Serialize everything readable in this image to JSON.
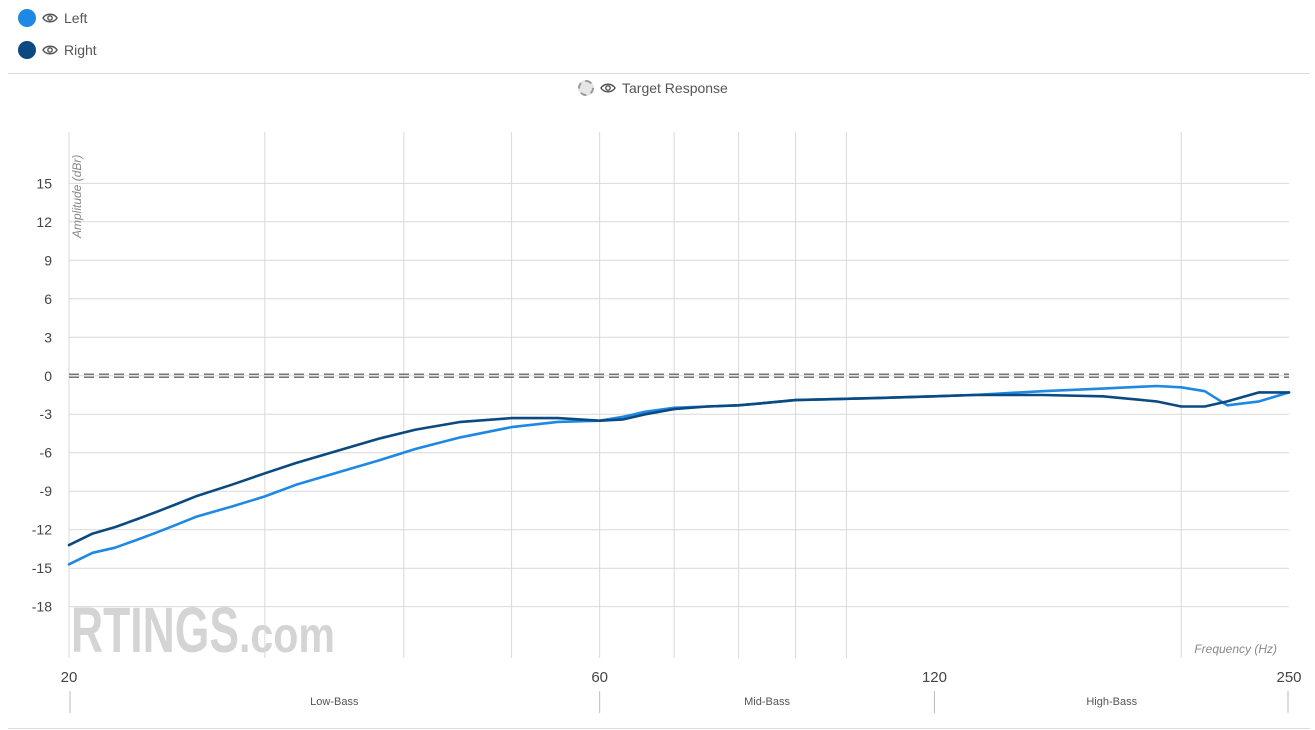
{
  "legend": {
    "items": [
      {
        "label": "Left",
        "color": "#1e88e5",
        "icon": "eye-icon"
      },
      {
        "label": "Right",
        "color": "#0b4a80",
        "icon": "eye-icon"
      }
    ],
    "target_label": "Target Response"
  },
  "watermark": {
    "brand": "RTINGS",
    "suffix": ".com"
  },
  "chart_data": {
    "type": "line",
    "ylabel": "Amplitude (dBr)",
    "xlabel": "Frequency (Hz)",
    "xlim": [
      20,
      250
    ],
    "ylim": [
      -22,
      19
    ],
    "yticks": [
      15,
      12,
      9,
      6,
      3,
      0,
      -3,
      -6,
      -9,
      -12,
      -15,
      -18
    ],
    "xticks": [
      20,
      60,
      120,
      250
    ],
    "grid": true,
    "bands": [
      {
        "label": "Low-Bass",
        "from": 20,
        "to": 60
      },
      {
        "label": "Mid-Bass",
        "from": 60,
        "to": 120
      },
      {
        "label": "High-Bass",
        "from": 120,
        "to": 250
      }
    ],
    "target": {
      "name": "Target Response",
      "value": 0,
      "color": "#888888"
    },
    "series": [
      {
        "name": "Left",
        "color": "#1e88e5",
        "x": [
          20,
          21,
          22,
          23,
          24,
          25,
          26,
          28,
          30,
          32,
          35,
          38,
          41,
          45,
          50,
          55,
          60,
          63,
          66,
          70,
          75,
          80,
          85,
          90,
          100,
          110,
          120,
          130,
          150,
          170,
          190,
          200,
          210,
          220,
          235,
          250
        ],
        "y": [
          -14.7,
          -13.8,
          -13.4,
          -12.8,
          -12.2,
          -11.6,
          -11.0,
          -10.2,
          -9.4,
          -8.5,
          -7.5,
          -6.6,
          -5.7,
          -4.8,
          -4.0,
          -3.6,
          -3.5,
          -3.2,
          -2.8,
          -2.5,
          -2.4,
          -2.3,
          -2.1,
          -1.9,
          -1.8,
          -1.7,
          -1.6,
          -1.5,
          -1.2,
          -1.0,
          -0.8,
          -0.9,
          -1.2,
          -2.3,
          -2.0,
          -1.3
        ]
      },
      {
        "name": "Right",
        "color": "#0b4a80",
        "x": [
          20,
          21,
          22,
          23,
          24,
          25,
          26,
          28,
          30,
          32,
          35,
          38,
          41,
          45,
          50,
          55,
          60,
          63,
          66,
          70,
          75,
          80,
          85,
          90,
          100,
          110,
          120,
          130,
          150,
          170,
          190,
          200,
          210,
          220,
          235,
          250
        ],
        "y": [
          -13.2,
          -12.3,
          -11.8,
          -11.2,
          -10.6,
          -10.0,
          -9.4,
          -8.5,
          -7.6,
          -6.8,
          -5.8,
          -4.9,
          -4.2,
          -3.6,
          -3.3,
          -3.3,
          -3.5,
          -3.4,
          -3.0,
          -2.6,
          -2.4,
          -2.3,
          -2.1,
          -1.9,
          -1.8,
          -1.7,
          -1.6,
          -1.5,
          -1.5,
          -1.6,
          -2.0,
          -2.4,
          -2.4,
          -2.0,
          -1.3,
          -1.3
        ]
      }
    ]
  }
}
